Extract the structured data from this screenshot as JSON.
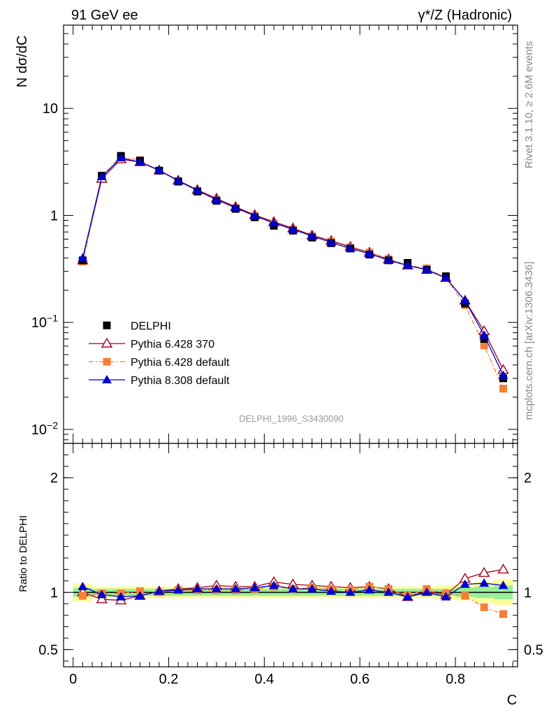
{
  "header": {
    "left": "91 GeV ee",
    "right": "γ*/Z (Hadronic)"
  },
  "side_labels": {
    "rivet": "Rivet 3.1.10, ≥ 2.6M events",
    "site": "mcplots.cern.ch [arXiv:1306.3436]"
  },
  "watermark": "DELPHI_1996_S3430090",
  "chart_data": [
    {
      "id": "main",
      "type": "scatter",
      "ylabel": "N dσ/dC",
      "yscale": "log",
      "ylim": [
        0.0074,
        60
      ],
      "xlim": [
        -0.02,
        0.93
      ],
      "y_ticks": [
        {
          "v": 10,
          "label": "10"
        },
        {
          "v": 1,
          "label": "1"
        },
        {
          "v": 0.1,
          "label": "10",
          "sup": "−1"
        },
        {
          "v": 0.01,
          "label": "10",
          "sup": "−2"
        }
      ],
      "x": [
        0.02,
        0.06,
        0.1,
        0.14,
        0.18,
        0.22,
        0.26,
        0.3,
        0.34,
        0.38,
        0.42,
        0.46,
        0.5,
        0.54,
        0.58,
        0.62,
        0.66,
        0.7,
        0.74,
        0.78,
        0.82,
        0.86,
        0.9
      ],
      "series": [
        {
          "name": "DELPHI",
          "color": "#000000",
          "marker": "square",
          "line": "none",
          "values": [
            0.38,
            2.35,
            3.6,
            3.25,
            2.62,
            2.07,
            1.67,
            1.37,
            1.15,
            0.96,
            0.8,
            0.72,
            0.62,
            0.55,
            0.49,
            0.43,
            0.38,
            0.36,
            0.31,
            0.27,
            0.15,
            0.07,
            0.03
          ]
        },
        {
          "name": "Pythia 6.428 370",
          "color": "#a0001a",
          "marker": "triangle-open",
          "line": "solid",
          "values": [
            0.38,
            2.2,
            3.35,
            3.15,
            2.64,
            2.12,
            1.73,
            1.44,
            1.2,
            1.01,
            0.87,
            0.76,
            0.65,
            0.58,
            0.51,
            0.45,
            0.39,
            0.34,
            0.31,
            0.26,
            0.16,
            0.083,
            0.036
          ]
        },
        {
          "name": "Pythia 6.428 default",
          "color": "#f57f35",
          "marker": "square",
          "line": "dashdot",
          "values": [
            0.37,
            2.32,
            3.55,
            3.28,
            2.62,
            2.1,
            1.7,
            1.4,
            1.17,
            0.99,
            0.84,
            0.74,
            0.64,
            0.57,
            0.5,
            0.45,
            0.39,
            0.34,
            0.32,
            0.26,
            0.145,
            0.061,
            0.024
          ]
        },
        {
          "name": "Pythia 8.308 default",
          "color": "#0000d0",
          "marker": "triangle",
          "line": "solid",
          "values": [
            0.4,
            2.3,
            3.45,
            3.15,
            2.64,
            2.1,
            1.71,
            1.4,
            1.18,
            0.99,
            0.85,
            0.74,
            0.64,
            0.56,
            0.49,
            0.44,
            0.38,
            0.34,
            0.31,
            0.26,
            0.16,
            0.076,
            0.032
          ]
        }
      ]
    },
    {
      "id": "ratio",
      "type": "scatter",
      "ylabel": "Ratio to DELPHI",
      "xlabel": "C",
      "ylim": [
        0.35,
        2.3
      ],
      "xlim": [
        -0.02,
        0.93
      ],
      "x_ticks": [
        {
          "v": 0,
          "label": "0"
        },
        {
          "v": 0.2,
          "label": "0.2"
        },
        {
          "v": 0.4,
          "label": "0.4"
        },
        {
          "v": 0.6,
          "label": "0.6"
        },
        {
          "v": 0.8,
          "label": "0.8"
        }
      ],
      "y_ticks": [
        {
          "v": 2,
          "label": "2"
        },
        {
          "v": 1,
          "label": "1"
        },
        {
          "v": 0.5,
          "label": "0.5"
        }
      ],
      "x": [
        0.02,
        0.06,
        0.1,
        0.14,
        0.18,
        0.22,
        0.26,
        0.3,
        0.34,
        0.38,
        0.42,
        0.46,
        0.5,
        0.54,
        0.58,
        0.62,
        0.66,
        0.7,
        0.74,
        0.78,
        0.82,
        0.86,
        0.9
      ],
      "band_inner": [
        0.04,
        0.03,
        0.03,
        0.03,
        0.03,
        0.03,
        0.03,
        0.03,
        0.03,
        0.03,
        0.03,
        0.03,
        0.03,
        0.03,
        0.03,
        0.03,
        0.03,
        0.03,
        0.03,
        0.03,
        0.04,
        0.05,
        0.06
      ],
      "band_outer": [
        0.08,
        0.05,
        0.05,
        0.05,
        0.05,
        0.05,
        0.05,
        0.05,
        0.05,
        0.05,
        0.05,
        0.05,
        0.05,
        0.05,
        0.05,
        0.05,
        0.05,
        0.05,
        0.05,
        0.06,
        0.07,
        0.09,
        0.11
      ],
      "series": [
        {
          "name": "Pythia 6.428 370",
          "color": "#a0001a",
          "marker": "triangle-open",
          "line": "solid",
          "values": [
            1.0,
            0.94,
            0.93,
            0.97,
            1.01,
            1.03,
            1.04,
            1.06,
            1.05,
            1.05,
            1.09,
            1.07,
            1.06,
            1.05,
            1.04,
            1.05,
            1.03,
            0.96,
            1.01,
            0.98,
            1.12,
            1.17,
            1.2
          ]
        },
        {
          "name": "Pythia 6.428 default",
          "color": "#f57f35",
          "marker": "square",
          "line": "dashdot",
          "values": [
            0.97,
            0.99,
            0.99,
            1.01,
            1.0,
            1.02,
            1.02,
            1.02,
            1.02,
            1.03,
            1.05,
            1.03,
            1.04,
            1.03,
            1.02,
            1.05,
            1.03,
            0.97,
            1.03,
            0.99,
            0.97,
            0.87,
            0.81
          ]
        },
        {
          "name": "Pythia 8.308 default",
          "color": "#0000d0",
          "marker": "triangle",
          "line": "solid",
          "values": [
            1.05,
            0.98,
            0.96,
            0.97,
            1.01,
            1.02,
            1.03,
            1.03,
            1.03,
            1.04,
            1.06,
            1.03,
            1.03,
            1.01,
            1.0,
            1.02,
            1.0,
            0.96,
            1.0,
            0.96,
            1.07,
            1.08,
            1.06
          ]
        }
      ]
    }
  ]
}
